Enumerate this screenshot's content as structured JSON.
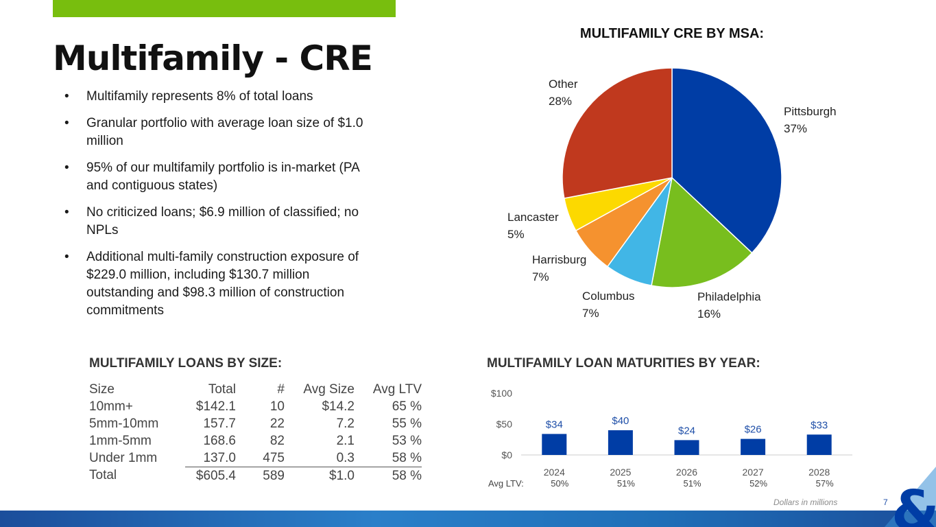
{
  "title": "Multifamily - CRE",
  "bullets": [
    "Multifamily represents 8% of total loans",
    "Granular portfolio with average loan size of $1.0 million",
    "95% of our multifamily portfolio is in-market (PA and contiguous states)",
    "No criticized loans; $6.9 million of classified; no NPLs",
    "Additional multi-family construction exposure of $229.0 million, including $130.7 million outstanding and $98.3 million of construction commitments"
  ],
  "bullet_glyph": "•",
  "colors": {
    "accent_green": "#78be0e",
    "brand_blue": "#003da5",
    "bar_blue": "#003da5"
  },
  "chart_data": [
    {
      "type": "pie",
      "title": "MULTIFAMILY CRE BY MSA:",
      "slices": [
        {
          "name": "Pittsburgh",
          "value": 37,
          "pct_label": "37%",
          "color": "#003da5"
        },
        {
          "name": "Philadelphia",
          "value": 16,
          "pct_label": "16%",
          "color": "#78be1e"
        },
        {
          "name": "Columbus",
          "value": 7,
          "pct_label": "7%",
          "color": "#41b6e6"
        },
        {
          "name": "Harrisburg",
          "value": 7,
          "pct_label": "7%",
          "color": "#f5922f"
        },
        {
          "name": "Lancaster",
          "value": 5,
          "pct_label": "5%",
          "color": "#fcd900"
        },
        {
          "name": "Other",
          "value": 28,
          "pct_label": "28%",
          "color": "#c0391e"
        }
      ]
    },
    {
      "type": "bar",
      "title": "MULTIFAMILY LOAN MATURITIES BY YEAR:",
      "categories": [
        "2024",
        "2025",
        "2026",
        "2027",
        "2028"
      ],
      "values": [
        34,
        40,
        24,
        26,
        33
      ],
      "value_labels": [
        "$34",
        "$40",
        "$24",
        "$26",
        "$33"
      ],
      "y_ticks": [
        "$100",
        "$50",
        "$0"
      ],
      "ylim": [
        0,
        100
      ],
      "ltv_label": "Avg LTV:",
      "ltv_values": [
        "50%",
        "51%",
        "51%",
        "52%",
        "57%"
      ]
    }
  ],
  "size_table": {
    "title": "MULTIFAMILY LOANS BY SIZE:",
    "headers": [
      "Size",
      "Total",
      "#",
      "Avg Size",
      "Avg LTV"
    ],
    "rows": [
      [
        "10mm+",
        "$142.1",
        "10",
        "$14.2",
        "65 %"
      ],
      [
        "5mm-10mm",
        "157.7",
        "22",
        "7.2",
        "55 %"
      ],
      [
        "1mm-5mm",
        "168.6",
        "82",
        "2.1",
        "53 %"
      ],
      [
        "Under 1mm",
        "137.0",
        "475",
        "0.3",
        "58 %"
      ]
    ],
    "total_row": [
      "Total",
      "$605.4",
      "589",
      "$1.0",
      "58 %"
    ]
  },
  "footnote": "Dollars in millions",
  "page_number": "7"
}
